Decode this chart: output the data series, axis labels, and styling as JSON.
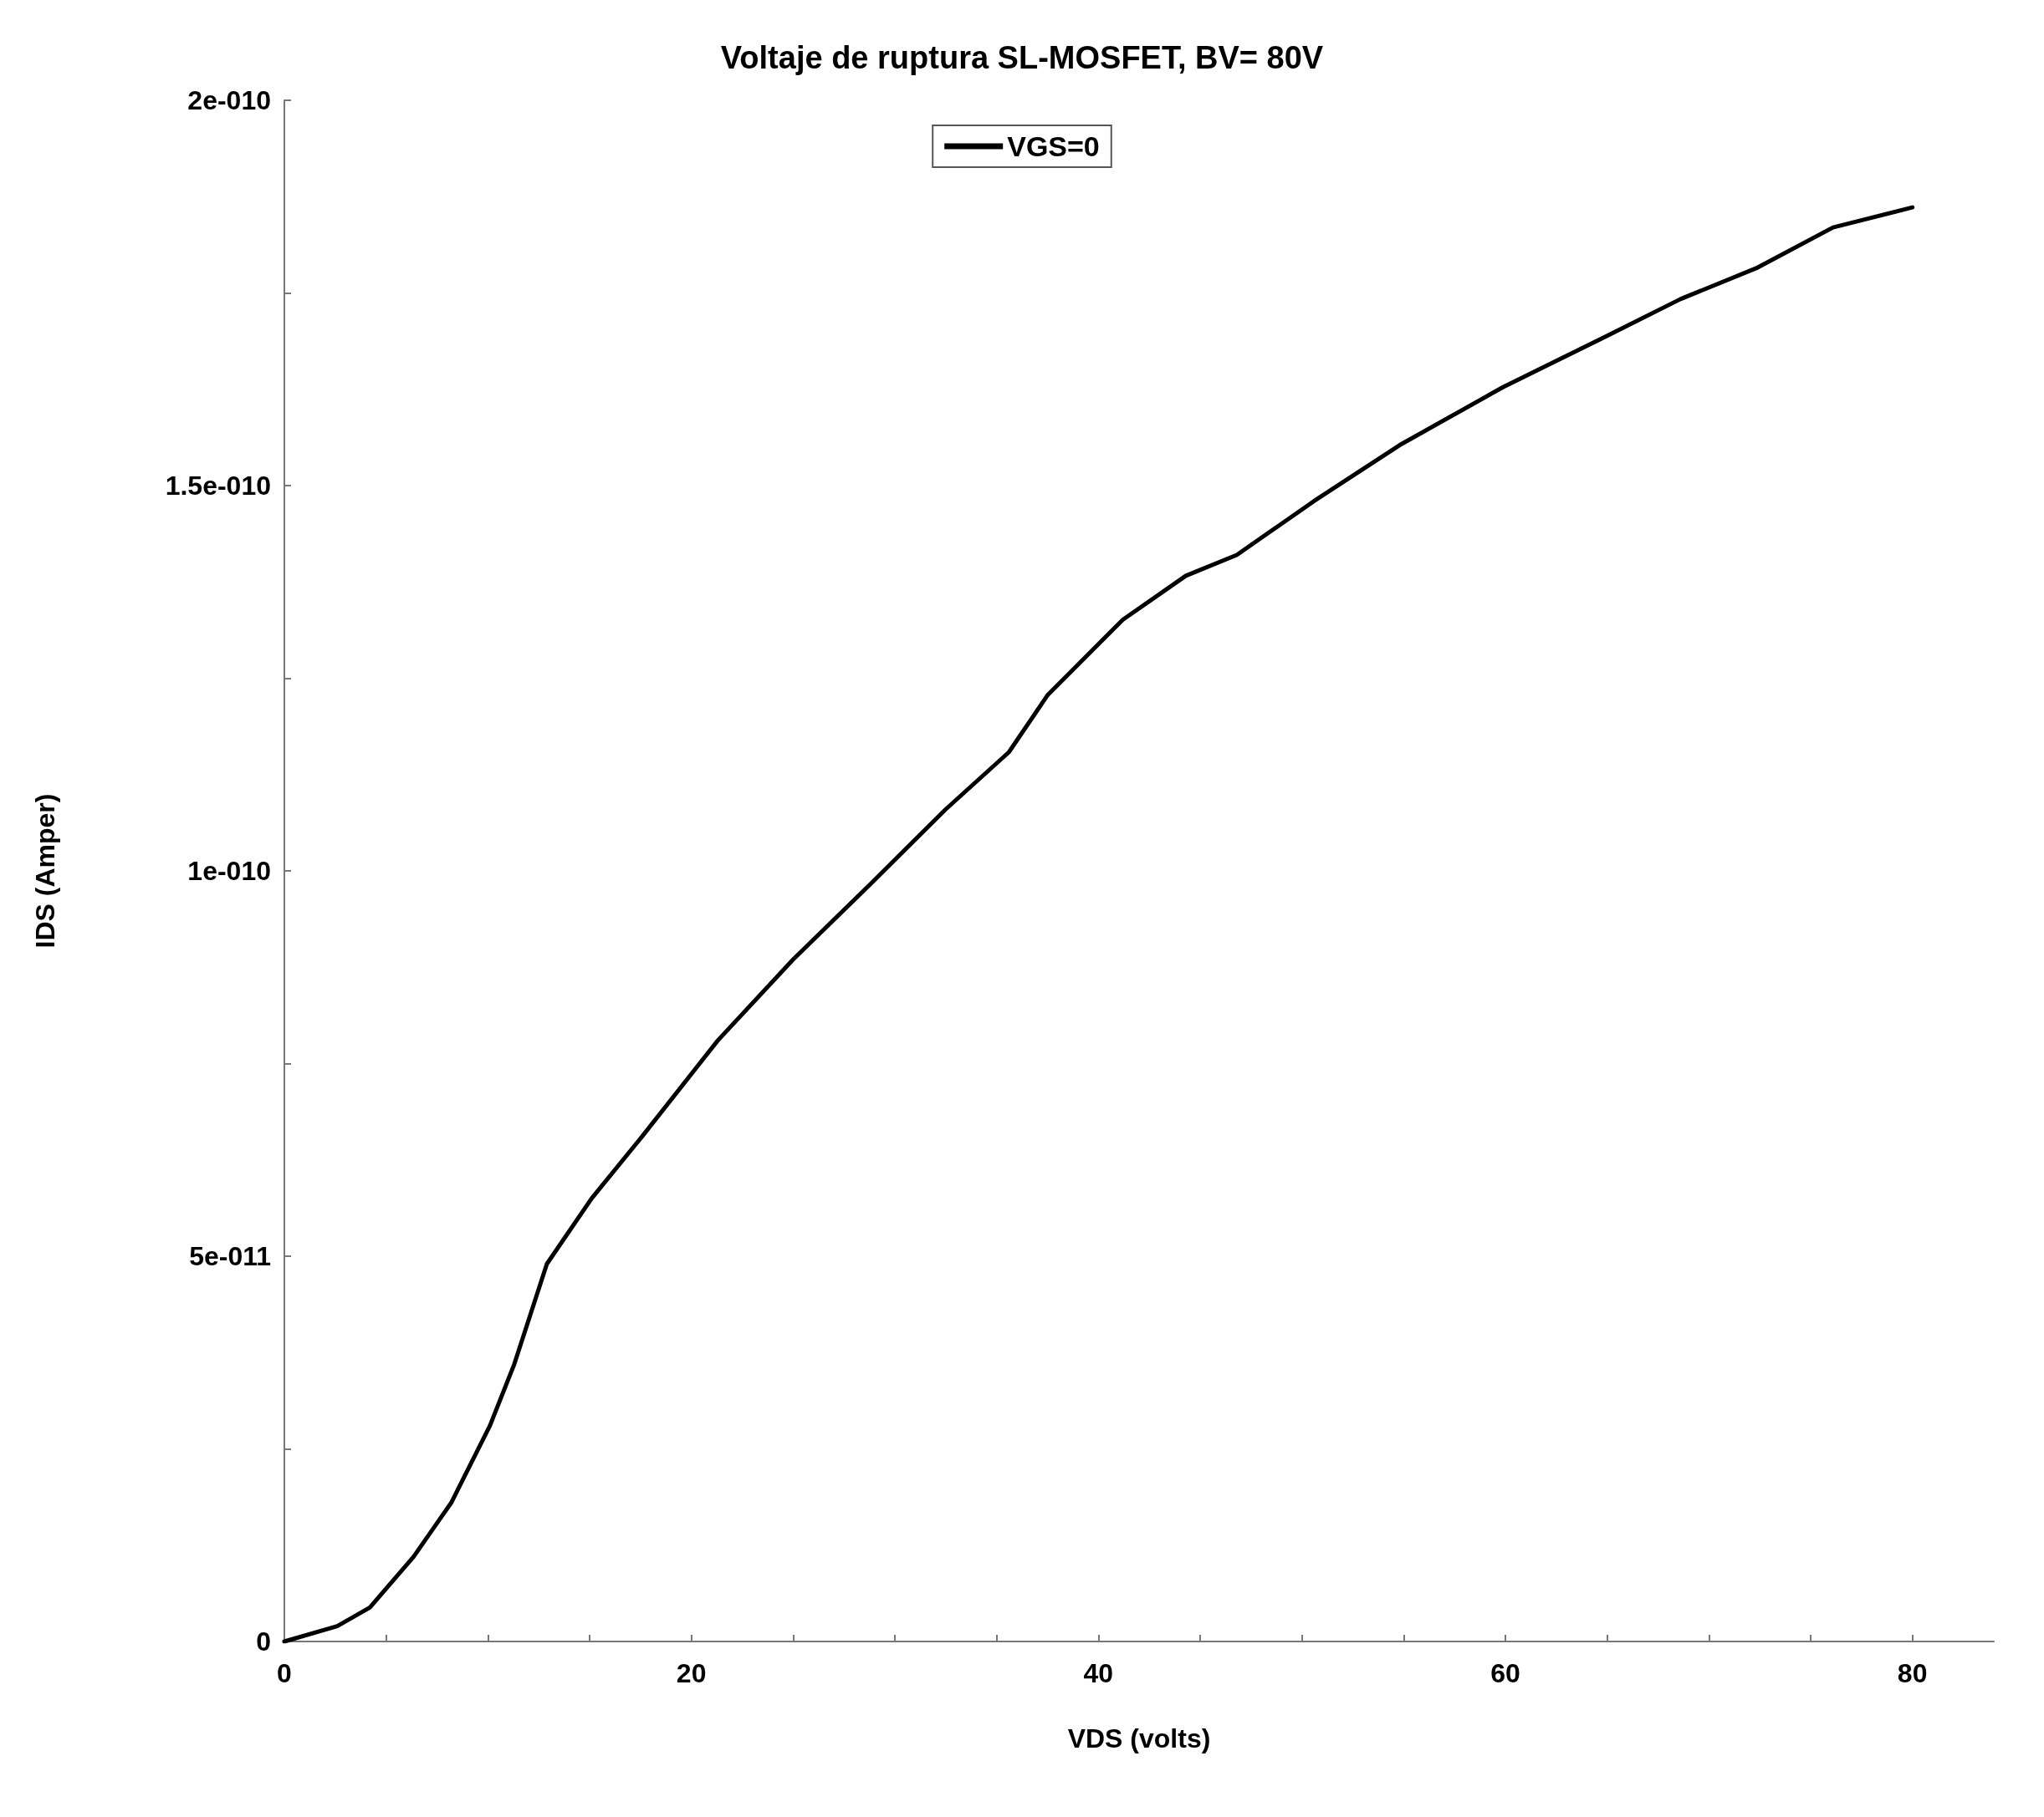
{
  "chart_data": {
    "type": "line",
    "title": "Voltaje de ruptura SL-MOSFET, BV= 80V",
    "xlabel": "VDS (volts)",
    "ylabel": "IDS (Amper)",
    "x": [
      0,
      2.6,
      4.2,
      6.35,
      8.2,
      10.1,
      11.3,
      12.9,
      15.1,
      17.6,
      21.3,
      25.0,
      28.8,
      32.5,
      35.6,
      37.5,
      41.2,
      44.3,
      46.8,
      50.6,
      54.9,
      59.9,
      64.9,
      68.6,
      72.4,
      76.1,
      80.0
    ],
    "series": [
      {
        "name": "VGS=0",
        "color": "#000000",
        "values": [
          0,
          2e-12,
          4.4e-12,
          1.1e-11,
          1.8e-11,
          2.8e-11,
          3.6e-11,
          4.9e-11,
          5.75e-11,
          6.56e-11,
          7.8e-11,
          8.85e-11,
          9.83e-11,
          1.08e-10,
          1.154e-10,
          1.228e-10,
          1.326e-10,
          1.383e-10,
          1.41e-10,
          1.48e-10,
          1.554e-10,
          1.628e-10,
          1.693e-10,
          1.742e-10,
          1.783e-10,
          1.835e-10,
          1.861e-10
        ]
      }
    ],
    "xlim": [
      0,
      84
    ],
    "xticks": [
      0,
      {
        "value": 5,
        "label": null
      },
      {
        "value": 10,
        "label": null
      },
      {
        "value": 15,
        "label": null
      },
      20,
      {
        "value": 25,
        "label": null
      },
      {
        "value": 30,
        "label": null
      },
      {
        "value": 35,
        "label": null
      },
      40,
      {
        "value": 45,
        "label": null
      },
      {
        "value": 50,
        "label": null
      },
      {
        "value": 55,
        "label": null
      },
      60,
      {
        "value": 65,
        "label": null
      },
      {
        "value": 70,
        "label": null
      },
      {
        "value": 75,
        "label": null
      },
      80
    ],
    "ylim": [
      0,
      2e-10
    ],
    "yticks": [
      {
        "value": 0,
        "label": "0"
      },
      {
        "value": 2.5e-11,
        "label": null
      },
      {
        "value": 5e-11,
        "label": "5e-011"
      },
      {
        "value": 7.5e-11,
        "label": null
      },
      {
        "value": 1e-10,
        "label": "1e-010"
      },
      {
        "value": 1.25e-10,
        "label": null
      },
      {
        "value": 1.5e-10,
        "label": "1.5e-010"
      },
      {
        "value": 1.75e-10,
        "label": null
      },
      {
        "value": 2e-10,
        "label": "2e-010"
      }
    ],
    "grid": false,
    "legend": "top",
    "marker": "none",
    "line_style": "solid"
  }
}
